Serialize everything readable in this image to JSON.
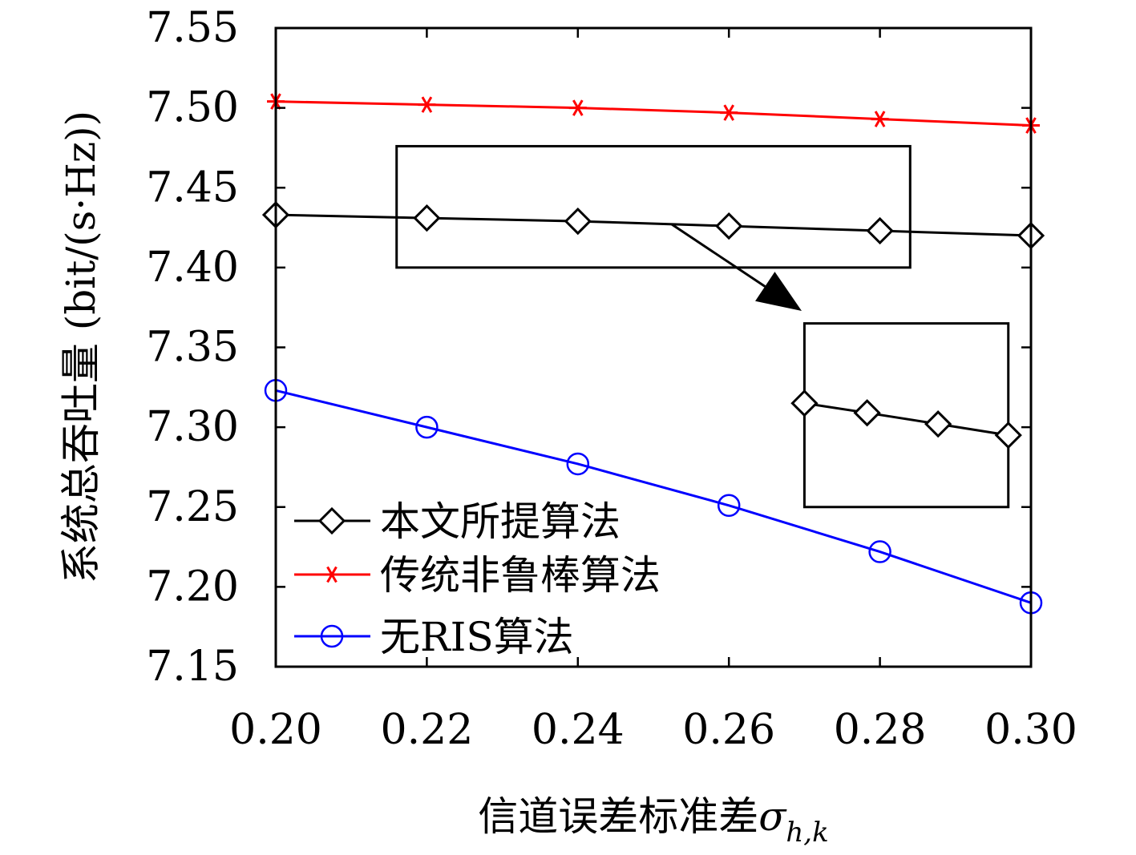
{
  "chart_data": {
    "type": "line",
    "xlabel": "信道误差标准差",
    "xlabel_symbol": "σ",
    "xlabel_subscript": "h,k",
    "ylabel": "系统总吞吐量 (bit/(s·Hz))",
    "xlim": [
      0.2,
      0.3
    ],
    "ylim": [
      7.15,
      7.55
    ],
    "xticks": [
      "0.20",
      "0.22",
      "0.24",
      "0.26",
      "0.28",
      "0.30"
    ],
    "yticks": [
      "7.15",
      "7.20",
      "7.25",
      "7.30",
      "7.35",
      "7.40",
      "7.45",
      "7.50",
      "7.55"
    ],
    "grid": false,
    "legend_position": "bottom-left",
    "x": [
      0.2,
      0.22,
      0.24,
      0.26,
      0.28,
      0.3
    ],
    "series": [
      {
        "name": "本文所提算法",
        "color": "#000000",
        "marker": "diamond",
        "values": [
          7.433,
          7.431,
          7.429,
          7.426,
          7.423,
          7.42
        ]
      },
      {
        "name": "传统非鲁棒算法",
        "color": "#ff0000",
        "marker": "asterisk",
        "values": [
          7.504,
          7.502,
          7.5,
          7.497,
          7.493,
          7.489
        ]
      },
      {
        "name": "无RIS算法",
        "color": "#0000ff",
        "marker": "circle",
        "values": [
          7.323,
          7.3,
          7.277,
          7.251,
          7.222,
          7.19
        ]
      }
    ],
    "annotations": {
      "zoom_region": {
        "x": [
          0.216,
          0.284
        ],
        "y": [
          7.4,
          7.476
        ]
      },
      "inset": {
        "x": [
          0.27,
          0.297
        ],
        "y": [
          7.25,
          7.365
        ],
        "x_points": [
          0.27,
          0.2783,
          0.2877,
          0.297
        ],
        "y_points": [
          7.315,
          7.309,
          7.302,
          7.295
        ]
      }
    }
  }
}
